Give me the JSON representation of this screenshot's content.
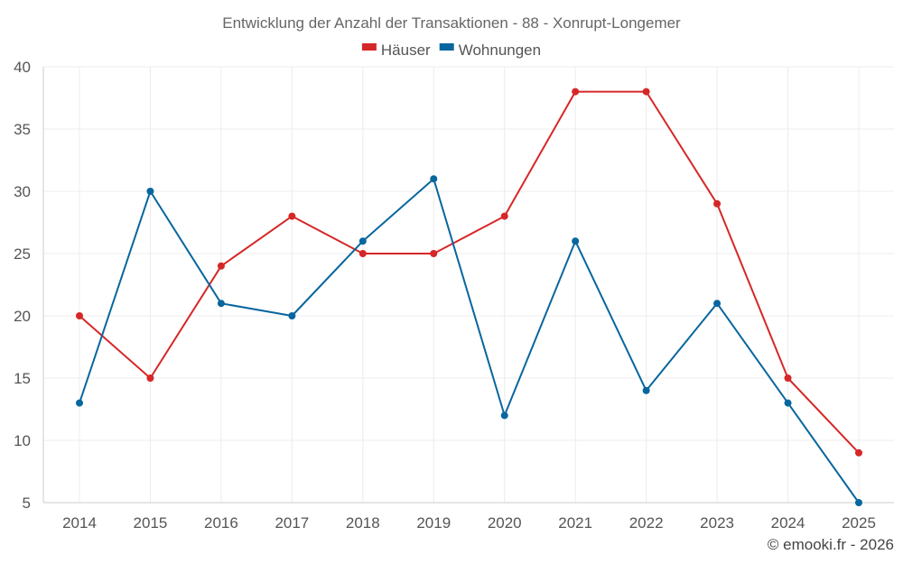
{
  "chart_data": {
    "type": "line",
    "title": "Entwicklung der Anzahl der Transaktionen - 88 - Xonrupt-Longemer",
    "categories": [
      "2014",
      "2015",
      "2016",
      "2017",
      "2018",
      "2019",
      "2020",
      "2021",
      "2022",
      "2023",
      "2024",
      "2025"
    ],
    "series": [
      {
        "name": "Häuser",
        "color": "#d62728",
        "values": [
          20,
          15,
          24,
          28,
          25,
          25,
          28,
          38,
          38,
          29,
          15,
          9
        ]
      },
      {
        "name": "Wohnungen",
        "color": "#08669e",
        "values": [
          13,
          30,
          21,
          20,
          26,
          31,
          12,
          26,
          14,
          21,
          13,
          5
        ]
      }
    ],
    "ylim": [
      5,
      40
    ],
    "yticks": [
      "5",
      "10",
      "15",
      "20",
      "25",
      "30",
      "35",
      "40"
    ],
    "xlabel": "",
    "ylabel": "",
    "grid": true,
    "legend_position": "top-center"
  },
  "credit": "© emooki.fr - 2026"
}
